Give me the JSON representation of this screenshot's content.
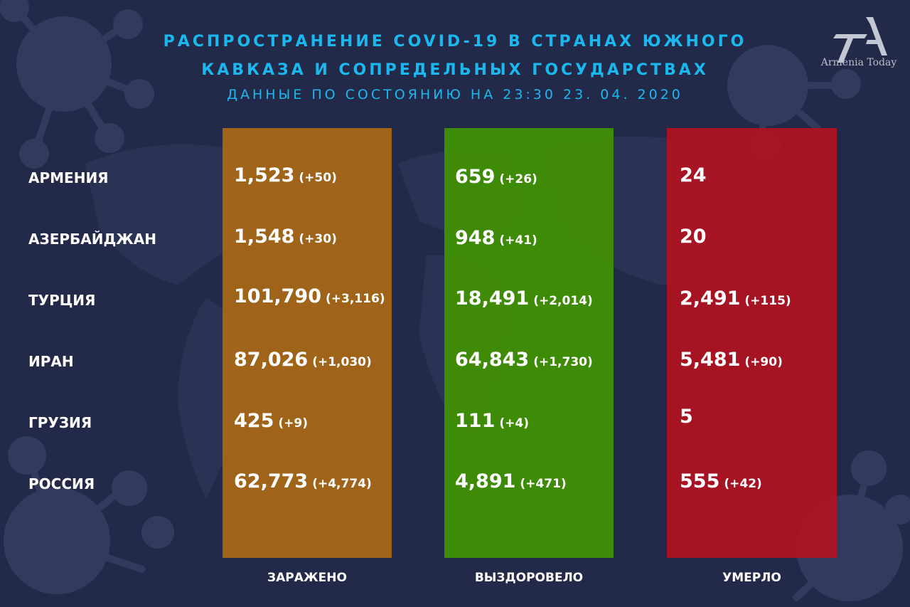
{
  "header": {
    "title_line1": "РАСПРОСТРАНЕНИЕ COVID-19 В СТРАНАХ ЮЖНОГО",
    "title_line2": "КАВКАЗА И СОПРЕДЕЛЬНЫХ ГОСУДАРСТВАХ",
    "subtitle": "ДАННЫЕ ПО СОСТОЯНИЮ НА 23:30  23. 04. 2020"
  },
  "logo": {
    "text": "Armenia Today",
    "mark": "TA"
  },
  "columns": {
    "infected": "ЗАРАЖЕНО",
    "recovered": "ВЫЗДОРОВЕЛО",
    "died": "УМЕРЛО"
  },
  "colors": {
    "background": "#232a49",
    "title": "#1ab8ee",
    "infected": "#b06c12",
    "recovered": "#409004",
    "died": "#b21222"
  },
  "rows": [
    {
      "country": "АРМЕНИЯ",
      "infected": {
        "value": "1,523",
        "delta": "(+50)"
      },
      "recovered": {
        "value": "659",
        "delta": "(+26)"
      },
      "died": {
        "value": "24",
        "delta": ""
      }
    },
    {
      "country": "АЗЕРБАЙДЖАН",
      "infected": {
        "value": "1,548",
        "delta": "(+30)"
      },
      "recovered": {
        "value": "948",
        "delta": "(+41)"
      },
      "died": {
        "value": "20",
        "delta": ""
      }
    },
    {
      "country": "ТУРЦИЯ",
      "infected": {
        "value": "101,790",
        "delta": "(+3,116)"
      },
      "recovered": {
        "value": "18,491",
        "delta": "(+2,014)"
      },
      "died": {
        "value": "2,491",
        "delta": "(+115)"
      }
    },
    {
      "country": "ИРАН",
      "infected": {
        "value": "87,026",
        "delta": "(+1,030)"
      },
      "recovered": {
        "value": "64,843",
        "delta": "(+1,730)"
      },
      "died": {
        "value": "5,481",
        "delta": "(+90)"
      }
    },
    {
      "country": "ГРУЗИЯ",
      "infected": {
        "value": "425",
        "delta": "(+9)"
      },
      "recovered": {
        "value": "111",
        "delta": "(+4)"
      },
      "died": {
        "value": "5",
        "delta": ""
      }
    },
    {
      "country": "РОССИЯ",
      "infected": {
        "value": "62,773",
        "delta": "(+4,774)"
      },
      "recovered": {
        "value": "4,891",
        "delta": "(+471)"
      },
      "died": {
        "value": "555",
        "delta": "(+42)"
      }
    }
  ]
}
